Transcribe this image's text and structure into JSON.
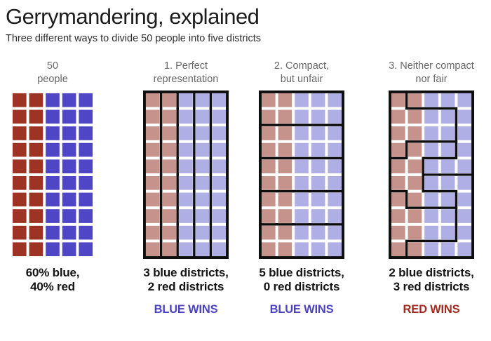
{
  "title": "Gerrymandering, explained",
  "subtitle": "Three different ways to divide 50 people into five districts",
  "population": {
    "total_people": 50,
    "blue_pct": 60,
    "red_pct": 40,
    "grid_rows": 10,
    "grid_cols": 5,
    "red_columns": 2
  },
  "colors": {
    "red_bold": "#9d3423",
    "blue_bold": "#4e46c5",
    "red_muted": "#c5938c",
    "blue_muted": "#afaee5",
    "district_line": "#0e0e0e",
    "win_blue": "#4b42c4",
    "win_red": "#a42a1f"
  },
  "panels": [
    {
      "header1": "50",
      "header2": "people",
      "caption1": "60% blue,",
      "caption2": "40% red",
      "win": "",
      "win_color": "",
      "grid": {
        "rows": 10,
        "cols": 5,
        "red_cols": 2,
        "palette": "bold",
        "districts": null
      }
    },
    {
      "header1": "1. Perfect",
      "header2": "representation",
      "caption1": "3 blue districts,",
      "caption2": "2 red districts",
      "win": "BLUE WINS",
      "win_color": "blue",
      "grid": {
        "rows": 10,
        "cols": 5,
        "red_cols": 2,
        "palette": "muted",
        "districts": [
          "12345",
          "12345",
          "12345",
          "12345",
          "12345",
          "12345",
          "12345",
          "12345",
          "12345",
          "12345"
        ]
      }
    },
    {
      "header1": "2. Compact,",
      "header2": "but unfair",
      "caption1": "5 blue districts,",
      "caption2": "0 red districts",
      "win": "BLUE WINS",
      "win_color": "blue",
      "grid": {
        "rows": 10,
        "cols": 5,
        "red_cols": 2,
        "palette": "muted",
        "districts": [
          "11111",
          "11111",
          "22222",
          "22222",
          "33333",
          "33333",
          "44444",
          "44444",
          "55555",
          "55555"
        ]
      }
    },
    {
      "header1": "3. Neither compact",
      "header2": "nor fair",
      "caption1": "2 blue districts,",
      "caption2": "3 red districts",
      "win": "RED WINS",
      "win_color": "red",
      "grid": {
        "rows": 10,
        "cols": 5,
        "red_cols": 2,
        "palette": "muted",
        "districts": [
          "12222",
          "11112",
          "11112",
          "13332",
          "33222",
          "33555",
          "43335",
          "44445",
          "44445",
          "45555"
        ]
      }
    }
  ]
}
